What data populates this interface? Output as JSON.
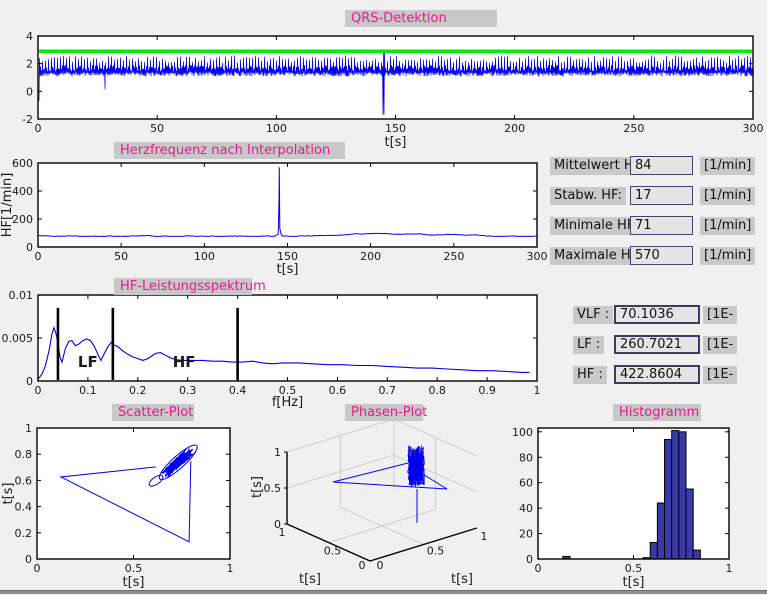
{
  "window": {
    "background": "#f0f0f0",
    "titlebar_gray": "#c8c8c8",
    "title_text_color": "#e81a8c",
    "plot_line_color": "#0000ee",
    "threshold_line_color": "#00f000",
    "histogram_fill": "#3939a8",
    "annotation_red": "#f04545"
  },
  "titles": {
    "qrs": "QRS-Detektion",
    "hr": "Herzfrequenz nach Interpolation",
    "spectrum": "HF-Leistungsspektrum",
    "scatter": "Scatter-Plot",
    "phase": "Phasen-Plot",
    "histogram": "Histogramm"
  },
  "stats_panel": {
    "rows": [
      {
        "label": "Mittelwert HF:",
        "value": "84",
        "unit": "[1/min]"
      },
      {
        "label": "Stabw. HF:",
        "value": "17",
        "unit": "[1/min]"
      },
      {
        "label": "Minimale HF:",
        "value": "71",
        "unit": "[1/min]"
      },
      {
        "label": "Maximale HF:",
        "value": "570",
        "unit": "[1/min]"
      }
    ]
  },
  "freq_panel": {
    "rows": [
      {
        "label": "VLF :",
        "value": "70.1036",
        "unit": "[1E-"
      },
      {
        "label": "LF :",
        "value": "260.7021",
        "unit": "[1E-"
      },
      {
        "label": "HF :",
        "value": "422.8604",
        "unit": "[1E-"
      }
    ]
  },
  "chart_data": [
    {
      "id": "qrs",
      "type": "line",
      "title": "QRS-Detektion",
      "xlabel": "t[s]",
      "xlim": [
        0,
        300
      ],
      "ylim": [
        -2,
        4
      ],
      "xticks": [
        0,
        50,
        100,
        150,
        200,
        250,
        300
      ],
      "xtick_labels": [
        "0",
        "50",
        "100",
        "150",
        "200",
        "250",
        "300"
      ],
      "yticks": [
        -2,
        0,
        2,
        4
      ],
      "ytick_labels": [
        "-2",
        "0",
        "2",
        "4"
      ],
      "threshold_line_y": 2.9,
      "signal_description": "dense ECG band 1.0-1.9 with R-peaks to 2.0-2.6 about every 0.7 s",
      "band_low": [
        1.08,
        1.38
      ],
      "rpeak_high": [
        2.05,
        2.6
      ],
      "minor_high": [
        1.45,
        1.9
      ],
      "artifacts": [
        {
          "t": 0.5,
          "min": -0.7
        },
        {
          "t": 28,
          "min": 0.15
        },
        {
          "t": 145,
          "min": -1.7,
          "max": 2.88
        }
      ]
    },
    {
      "id": "hr",
      "type": "line",
      "title": "Herzfrequenz nach Interpolation",
      "xlabel": "t[s]",
      "ylabel": "HF[1/min]",
      "xlim": [
        0,
        300
      ],
      "ylim": [
        0,
        600
      ],
      "xticks": [
        0,
        50,
        100,
        150,
        200,
        250,
        300
      ],
      "xtick_labels": [
        "0",
        "50",
        "100",
        "150",
        "200",
        "250",
        "300"
      ],
      "yticks": [
        0,
        200,
        400,
        600
      ],
      "ytick_labels": [
        "0",
        "200",
        "400",
        "600"
      ],
      "baseline_mean": 85,
      "noise_amplitude": 6,
      "spike": {
        "t": 145.2,
        "peak": 570,
        "shoulder": 315
      }
    },
    {
      "id": "spectrum",
      "type": "line",
      "title": "HF-Leistungsspektrum",
      "xlabel": "f[Hz]",
      "xlim": [
        0,
        1
      ],
      "ylim": [
        0,
        0.01
      ],
      "xticks": [
        0,
        0.1,
        0.2,
        0.3,
        0.4,
        0.5,
        0.6,
        0.7,
        0.8,
        0.9,
        1
      ],
      "xtick_labels": [
        "0",
        "0.1",
        "0.2",
        "0.3",
        "0.4",
        "0.5",
        "0.6",
        "0.7",
        "0.8",
        "0.9",
        "1"
      ],
      "yticks": [
        0,
        0.005,
        0.01
      ],
      "ytick_labels": [
        "0",
        "0.005",
        "0.01"
      ],
      "band_markers_x": [
        0.04,
        0.15,
        0.4
      ],
      "band_marker_top": 0.0085,
      "annotations": [
        {
          "text": "LF",
          "x": 0.08,
          "y": 0.0016
        },
        {
          "text": "HF",
          "x": 0.27,
          "y": 0.0016
        }
      ],
      "points": [
        [
          0,
          0.0002
        ],
        [
          0.008,
          0.0008
        ],
        [
          0.015,
          0.0018
        ],
        [
          0.022,
          0.0035
        ],
        [
          0.028,
          0.0055
        ],
        [
          0.032,
          0.0062
        ],
        [
          0.036,
          0.0055
        ],
        [
          0.04,
          0.0044
        ],
        [
          0.044,
          0.0028
        ],
        [
          0.048,
          0.0022
        ],
        [
          0.055,
          0.0038
        ],
        [
          0.062,
          0.0046
        ],
        [
          0.068,
          0.0047
        ],
        [
          0.075,
          0.0041
        ],
        [
          0.082,
          0.0043
        ],
        [
          0.09,
          0.0047
        ],
        [
          0.098,
          0.0049
        ],
        [
          0.105,
          0.0047
        ],
        [
          0.112,
          0.0041
        ],
        [
          0.12,
          0.0031
        ],
        [
          0.126,
          0.0024
        ],
        [
          0.133,
          0.0032
        ],
        [
          0.14,
          0.004
        ],
        [
          0.147,
          0.0045
        ],
        [
          0.152,
          0.0042
        ],
        [
          0.16,
          0.004
        ],
        [
          0.17,
          0.0035
        ],
        [
          0.18,
          0.0031
        ],
        [
          0.19,
          0.0028
        ],
        [
          0.2,
          0.0026
        ],
        [
          0.21,
          0.0024
        ],
        [
          0.22,
          0.0026
        ],
        [
          0.235,
          0.0032
        ],
        [
          0.245,
          0.0033
        ],
        [
          0.255,
          0.003
        ],
        [
          0.265,
          0.0027
        ],
        [
          0.275,
          0.0025
        ],
        [
          0.29,
          0.0024
        ],
        [
          0.31,
          0.0024
        ],
        [
          0.33,
          0.0024
        ],
        [
          0.35,
          0.0023
        ],
        [
          0.37,
          0.0023
        ],
        [
          0.39,
          0.0022
        ],
        [
          0.41,
          0.0022
        ],
        [
          0.43,
          0.0023
        ],
        [
          0.45,
          0.0021
        ],
        [
          0.47,
          0.002
        ],
        [
          0.49,
          0.0021
        ],
        [
          0.52,
          0.0021
        ],
        [
          0.55,
          0.002
        ],
        [
          0.58,
          0.0019
        ],
        [
          0.61,
          0.0019
        ],
        [
          0.64,
          0.0018
        ],
        [
          0.67,
          0.0018
        ],
        [
          0.7,
          0.0017
        ],
        [
          0.73,
          0.0016
        ],
        [
          0.76,
          0.0015
        ],
        [
          0.79,
          0.0015
        ],
        [
          0.82,
          0.0014
        ],
        [
          0.85,
          0.0013
        ],
        [
          0.88,
          0.0012
        ],
        [
          0.91,
          0.0012
        ],
        [
          0.94,
          0.0011
        ],
        [
          0.97,
          0.001
        ],
        [
          0.985,
          0.001
        ]
      ]
    },
    {
      "id": "scatter",
      "type": "scatter",
      "title": "Scatter-Plot",
      "xlabel": "t[s]",
      "ylabel": "t[s]",
      "xlim": [
        0,
        1
      ],
      "ylim": [
        0,
        1
      ],
      "xticks": [
        0,
        0.5,
        1
      ],
      "xtick_labels": [
        "0",
        "0.5",
        "1"
      ],
      "yticks": [
        0,
        0.2,
        0.4,
        0.6,
        0.8,
        1
      ],
      "ytick_labels": [
        "0",
        "0.2",
        "0.4",
        "0.6",
        "0.8",
        "1"
      ],
      "cluster_center": [
        0.732,
        0.738
      ],
      "cluster_major_halfaxis": 0.115,
      "cluster_minor_halfaxis": 0.035,
      "outlier_path": [
        [
          0.615,
          0.703
        ],
        [
          0.124,
          0.626
        ],
        [
          0.788,
          0.131
        ],
        [
          0.797,
          0.748
        ]
      ],
      "small_loop_center": [
        0.617,
        0.598
      ]
    },
    {
      "id": "phase",
      "type": "line3d",
      "title": "Phasen-Plot",
      "xlabel": "t[s]",
      "ylabel": "t[s]",
      "zlabel": "t[s]",
      "xticks": [
        0,
        0.5,
        1
      ],
      "xtick_labels": [
        "0",
        "0.5",
        "1"
      ],
      "yticks": [
        0,
        0.5,
        1
      ],
      "ytick_labels": [
        "0",
        "0.5",
        "1"
      ],
      "zticks": [
        0,
        0.5,
        1
      ],
      "ztick_labels": [
        "0",
        "0.5",
        "1"
      ],
      "cluster_center": [
        0.72,
        0.72,
        0.72
      ],
      "outlier_description": "zig-zag excursion across the box with one vertical drop"
    },
    {
      "id": "histogram",
      "type": "bar",
      "title": "Histogramm",
      "xlabel": "t[s]",
      "xlim": [
        0,
        1
      ],
      "ylim": [
        0,
        103
      ],
      "xticks": [
        0,
        0.5,
        1
      ],
      "xtick_labels": [
        "0",
        "0.5",
        "1"
      ],
      "yticks": [
        0,
        20,
        40,
        60,
        80,
        100
      ],
      "ytick_labels": [
        "0",
        "20",
        "40",
        "60",
        "80",
        "100"
      ],
      "bin_width": 0.0375,
      "bins": [
        {
          "left": 0.13,
          "count": 2
        },
        {
          "left": 0.55,
          "count": 1
        },
        {
          "left": 0.5875,
          "count": 13
        },
        {
          "left": 0.625,
          "count": 44
        },
        {
          "left": 0.6625,
          "count": 94
        },
        {
          "left": 0.7,
          "count": 101
        },
        {
          "left": 0.7375,
          "count": 100
        },
        {
          "left": 0.775,
          "count": 55
        },
        {
          "left": 0.8125,
          "count": 7
        }
      ]
    }
  ]
}
